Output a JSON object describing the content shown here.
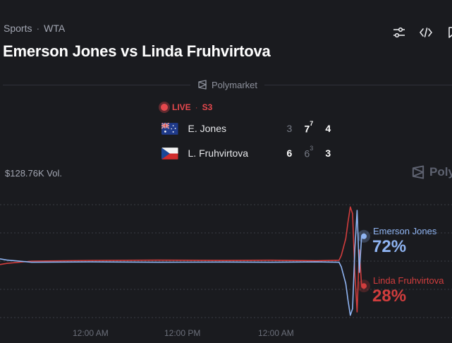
{
  "breadcrumb": {
    "sport": "Sports",
    "sep": "·",
    "league": "WTA"
  },
  "title": "Emerson Jones vs Linda Fruhvirtova",
  "header_icons": [
    "sliders-icon",
    "code-icon",
    "bookmark-icon"
  ],
  "brand": "Polymarket",
  "live": {
    "label": "LIVE",
    "sep": "·",
    "set": "S3"
  },
  "players": [
    {
      "name": "E. Jones",
      "flag": "australia",
      "sets": [
        "3",
        "7",
        "4"
      ],
      "tiebreak": "7"
    },
    {
      "name": "L. Fruhvirtova",
      "flag": "czech",
      "sets": [
        "6",
        "6",
        "3"
      ],
      "tiebreak": "3"
    }
  ],
  "volume": "$128.76K Vol.",
  "watermark": "Poly",
  "colors": {
    "jones": "#8fb4f2",
    "fruhvirtova": "#d13d3d",
    "live": "#e5484d",
    "background": "#1a1b1f"
  },
  "chart_data": {
    "type": "line",
    "ylim": [
      0,
      100
    ],
    "x_ticks": [
      "12:00 AM",
      "12:00 PM",
      "12:00 AM"
    ],
    "series": [
      {
        "name": "Emerson Jones",
        "value_label": "72%",
        "x": [
          0,
          0.015,
          0.07,
          0.2,
          0.35,
          0.5,
          0.6,
          0.7,
          0.75,
          0.755,
          0.765,
          0.77,
          0.775,
          0.78,
          0.785,
          0.79,
          0.795,
          0.8,
          0.805
        ],
        "y": [
          52,
          51,
          49,
          49.3,
          49,
          49.2,
          49,
          49.3,
          49,
          45,
          30,
          15,
          2,
          8,
          60,
          95,
          40,
          72,
          72
        ]
      },
      {
        "name": "Linda Fruhvirtova",
        "value_label": "28%",
        "x": [
          0,
          0.015,
          0.07,
          0.2,
          0.35,
          0.5,
          0.6,
          0.7,
          0.75,
          0.755,
          0.765,
          0.77,
          0.775,
          0.78,
          0.785,
          0.79,
          0.795,
          0.8,
          0.805
        ],
        "y": [
          47,
          48,
          50,
          50.6,
          50.9,
          50.7,
          50.8,
          50.4,
          50.8,
          55,
          70,
          85,
          98,
          92,
          40,
          5,
          60,
          28,
          28
        ]
      }
    ]
  }
}
